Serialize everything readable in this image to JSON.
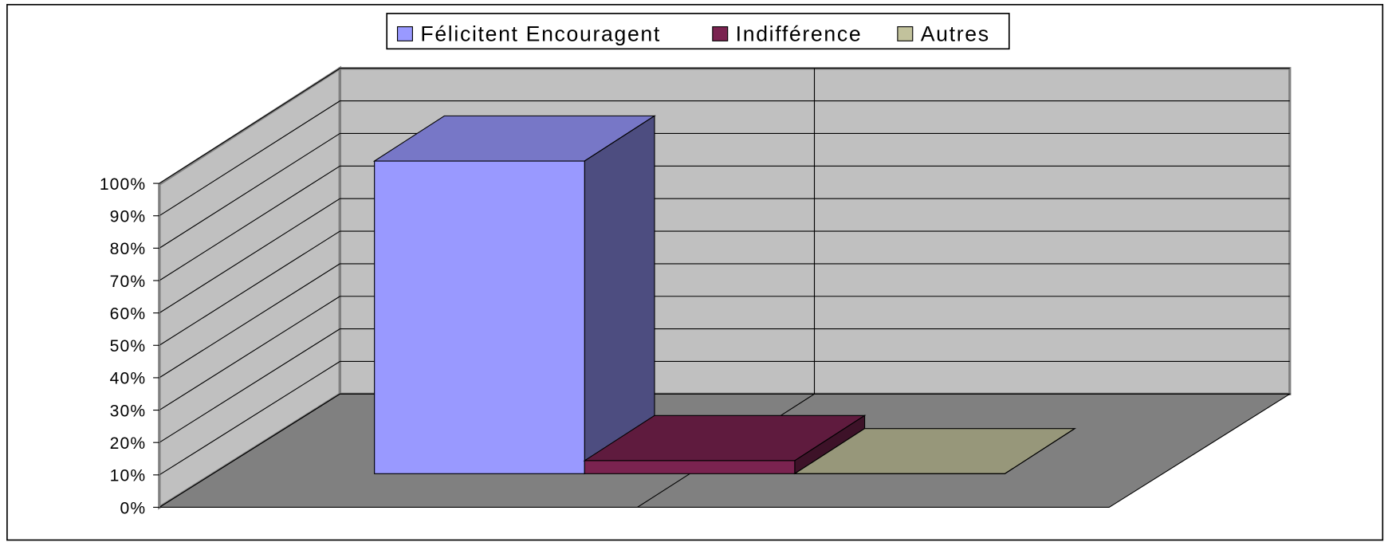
{
  "chart_data": {
    "type": "bar3d",
    "categories": [
      null
    ],
    "series": [
      {
        "name": "Félicitent Encouragent",
        "color": "#9999ff",
        "values": [
          96
        ]
      },
      {
        "name": "Indifférence",
        "color": "#7a2350",
        "values": [
          4
        ]
      },
      {
        "name": "Autres",
        "color": "#c2c29c",
        "values": [
          0
        ]
      }
    ],
    "ylim": [
      0,
      100
    ],
    "yticks": [
      {
        "value": 0,
        "label": "0%"
      },
      {
        "value": 10,
        "label": "10%"
      },
      {
        "value": 20,
        "label": "20%"
      },
      {
        "value": 30,
        "label": "30%"
      },
      {
        "value": 40,
        "label": "40%"
      },
      {
        "value": 50,
        "label": "50%"
      },
      {
        "value": 60,
        "label": "60%"
      },
      {
        "value": 70,
        "label": "70%"
      },
      {
        "value": 80,
        "label": "80%"
      },
      {
        "value": 90,
        "label": "90%"
      },
      {
        "value": 100,
        "label": "100%"
      }
    ],
    "grid": true,
    "legend": "top"
  }
}
